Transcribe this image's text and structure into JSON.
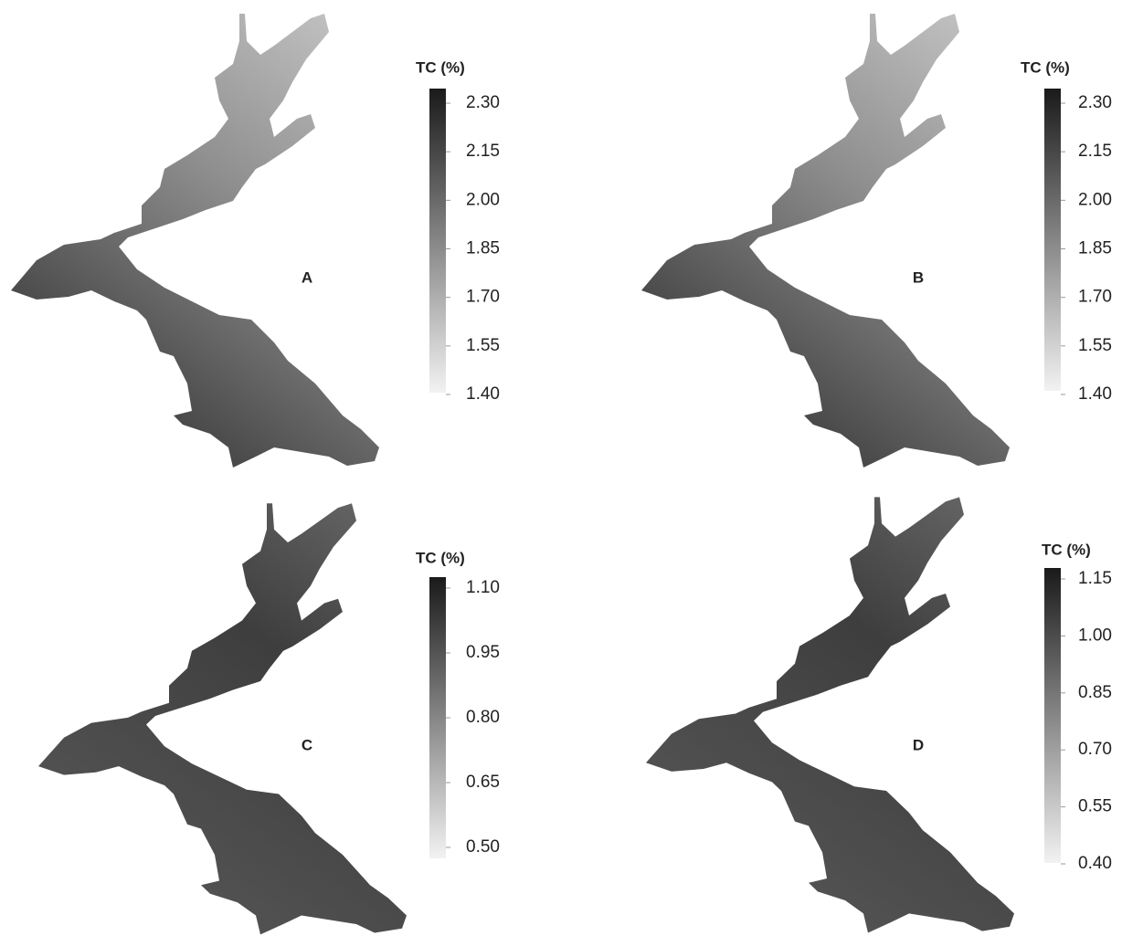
{
  "panels": [
    {
      "label": "A",
      "legend": {
        "title": "TC (%)",
        "ticks": [
          {
            "value": 2.3,
            "label": "2.30"
          },
          {
            "value": 2.15,
            "label": "2.15"
          },
          {
            "value": 2.0,
            "label": "2.00"
          },
          {
            "value": 1.85,
            "label": "1.85"
          },
          {
            "value": 1.7,
            "label": "1.70"
          },
          {
            "value": 1.55,
            "label": "1.55"
          },
          {
            "value": 1.4,
            "label": "1.40"
          }
        ]
      }
    },
    {
      "label": "B",
      "legend": {
        "title": "TC (%)",
        "ticks": [
          {
            "value": 2.3,
            "label": "2.30"
          },
          {
            "value": 2.15,
            "label": "2.15"
          },
          {
            "value": 2.0,
            "label": "2.00"
          },
          {
            "value": 1.85,
            "label": "1.85"
          },
          {
            "value": 1.7,
            "label": "1.70"
          },
          {
            "value": 1.55,
            "label": "1.55"
          },
          {
            "value": 1.4,
            "label": "1.40"
          }
        ]
      }
    },
    {
      "label": "C",
      "legend": {
        "title": "TC (%)",
        "ticks": [
          {
            "value": 1.1,
            "label": "1.10"
          },
          {
            "value": 0.95,
            "label": "0.95"
          },
          {
            "value": 0.8,
            "label": "0.80"
          },
          {
            "value": 0.65,
            "label": "0.65"
          },
          {
            "value": 0.5,
            "label": "0.50"
          }
        ]
      }
    },
    {
      "label": "D",
      "legend": {
        "title": "TC (%)",
        "ticks": [
          {
            "value": 1.15,
            "label": "1.15"
          },
          {
            "value": 1.0,
            "label": "1.00"
          },
          {
            "value": 0.85,
            "label": "0.85"
          },
          {
            "value": 0.7,
            "label": "0.70"
          },
          {
            "value": 0.55,
            "label": "0.55"
          },
          {
            "value": 0.4,
            "label": "0.40"
          }
        ]
      }
    }
  ]
}
